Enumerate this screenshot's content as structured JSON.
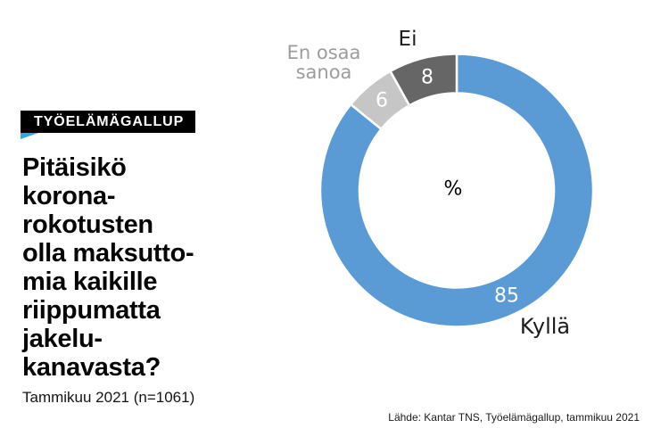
{
  "badge": {
    "label": "TYÖELÄMÄGALLUP",
    "background": "#000000",
    "fold_color": "#2fa9dd"
  },
  "question": {
    "text": "Pitäisikö\nkorona-\nrokotusten\nolla maksutto-\nmia kaikille\nriippumatta\njakelu-\nkanavasta?",
    "subtitle": "Tammikuu 2021 (n=1061)"
  },
  "chart_data": {
    "type": "pie",
    "subtype": "donut",
    "center_label": "%",
    "clockwise_from_top": true,
    "separator_color": "#ffffff",
    "segments": [
      {
        "label": "Kyllä",
        "value": 85,
        "color": "#5b9bd5",
        "value_label_color": "#ffffff",
        "label_color": "#1c1c1c"
      },
      {
        "label": "En osaa sanoa",
        "value": 6,
        "color": "#c6c6c6",
        "value_label_color": "#ffffff",
        "label_color": "#9d9d9d"
      },
      {
        "label": "Ei",
        "value": 8,
        "color": "#666666",
        "value_label_color": "#ffffff",
        "label_color": "#1c1c1c"
      }
    ]
  },
  "source": {
    "text": "Lähde: Kantar TNS, Työelämägallup, tammikuu 2021"
  }
}
